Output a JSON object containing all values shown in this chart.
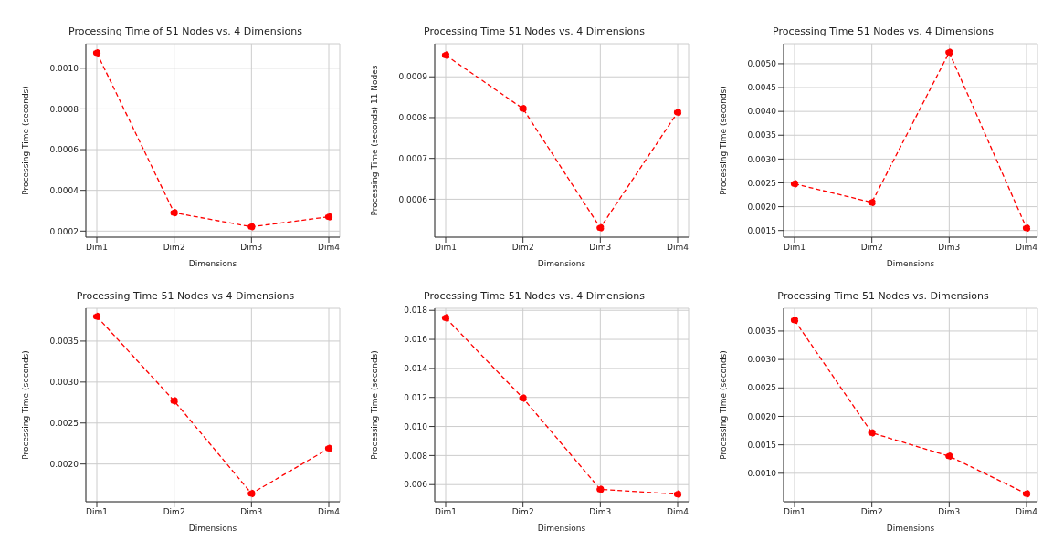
{
  "chart_data": [
    {
      "type": "line",
      "title": "Processing Time of 51 Nodes vs. 4 Dimensions",
      "xlabel": "Dimensions",
      "ylabel": "Processing Time (seconds)",
      "categories": [
        "Dim1",
        "Dim2",
        "Dim3",
        "Dim4"
      ],
      "series": [
        {
          "color": "#ff0000",
          "values": [
            0.001075,
            0.00029,
            0.000221,
            0.00027
          ]
        }
      ],
      "ylim": [
        0.00017,
        0.00112
      ],
      "yticks": [
        0.0002,
        0.0004,
        0.0006,
        0.0008,
        {
          "value": 0.001,
          "label": "0.0010"
        }
      ],
      "grid": true,
      "marker": "circle",
      "line_style": "dashed"
    },
    {
      "type": "line",
      "title": "Processing Time 51 Nodes vs. 4 Dimensions",
      "xlabel": "Dimensions",
      "ylabel": "Processing Time (seconds) 11 Nodes",
      "categories": [
        "Dim1",
        "Dim2",
        "Dim3",
        "Dim4"
      ],
      "series": [
        {
          "color": "#ff0000",
          "values": [
            0.000953,
            0.000822,
            0.00053,
            0.000813
          ]
        }
      ],
      "ylim": [
        0.000507,
        0.000981
      ],
      "yticks": [
        0.0006,
        0.0007,
        0.0008,
        0.0009
      ],
      "grid": true,
      "marker": "circle",
      "line_style": "dashed"
    },
    {
      "type": "line",
      "title": "Processing Time 51 Nodes vs. 4 Dimensions",
      "xlabel": "Dimensions",
      "ylabel": "Processing Time (seconds)",
      "categories": [
        "Dim1",
        "Dim2",
        "Dim3",
        "Dim4"
      ],
      "series": [
        {
          "color": "#ff0000",
          "values": [
            0.00248,
            0.00209,
            0.00524,
            0.00155
          ]
        }
      ],
      "ylim": [
        0.00136,
        0.00542
      ],
      "yticks": [
        0.0015,
        {
          "value": 0.002,
          "label": "0.0020"
        },
        0.0025,
        {
          "value": 0.003,
          "label": "0.0030"
        },
        0.0035,
        {
          "value": 0.004,
          "label": "0.0040"
        },
        0.0045,
        {
          "value": 0.005,
          "label": "0.0050"
        }
      ],
      "grid": true,
      "marker": "circle",
      "line_style": "dashed"
    },
    {
      "type": "line",
      "title": "Processing Time 51 Nodes vs 4 Dimensions",
      "xlabel": "Dimensions",
      "ylabel": "Processing Time (seconds)",
      "categories": [
        "Dim1",
        "Dim2",
        "Dim3",
        "Dim4"
      ],
      "series": [
        {
          "color": "#ff0000",
          "values": [
            0.0038,
            0.00277,
            0.00164,
            0.00219
          ]
        }
      ],
      "ylim": [
        0.00154,
        0.0039
      ],
      "yticks": [
        {
          "value": 0.002,
          "label": "0.0020"
        },
        0.0025,
        {
          "value": 0.003,
          "label": "0.0030"
        },
        0.0035
      ],
      "grid": true,
      "marker": "circle",
      "line_style": "dashed"
    },
    {
      "type": "line",
      "title": "Processing Time 51 Nodes vs. 4 Dimensions",
      "xlabel": "Dimensions",
      "ylabel": "Processing Time (seconds)",
      "categories": [
        "Dim1",
        "Dim2",
        "Dim3",
        "Dim4"
      ],
      "series": [
        {
          "color": "#ff0000",
          "values": [
            0.01748,
            0.01195,
            0.00567,
            0.00534
          ]
        }
      ],
      "ylim": [
        0.00482,
        0.01814
      ],
      "yticks": [
        0.006,
        0.008,
        {
          "value": 0.01,
          "label": "0.010"
        },
        0.012,
        0.014,
        0.016,
        0.018
      ],
      "grid": true,
      "marker": "circle",
      "line_style": "dashed"
    },
    {
      "type": "line",
      "title": "Processing Time 51 Nodes vs. Dimensions",
      "xlabel": "Dimensions",
      "ylabel": "Processing Time (seconds)",
      "categories": [
        "Dim1",
        "Dim2",
        "Dim3",
        "Dim4"
      ],
      "series": [
        {
          "color": "#ff0000",
          "values": [
            0.00369,
            0.00171,
            0.0013,
            0.00064
          ]
        }
      ],
      "ylim": [
        0.0005,
        0.0039
      ],
      "yticks": [
        {
          "value": 0.001,
          "label": "0.0010"
        },
        0.0015,
        {
          "value": 0.002,
          "label": "0.0020"
        },
        0.0025,
        {
          "value": 0.003,
          "label": "0.0030"
        },
        0.0035
      ],
      "grid": true,
      "marker": "circle",
      "line_style": "dashed"
    }
  ]
}
